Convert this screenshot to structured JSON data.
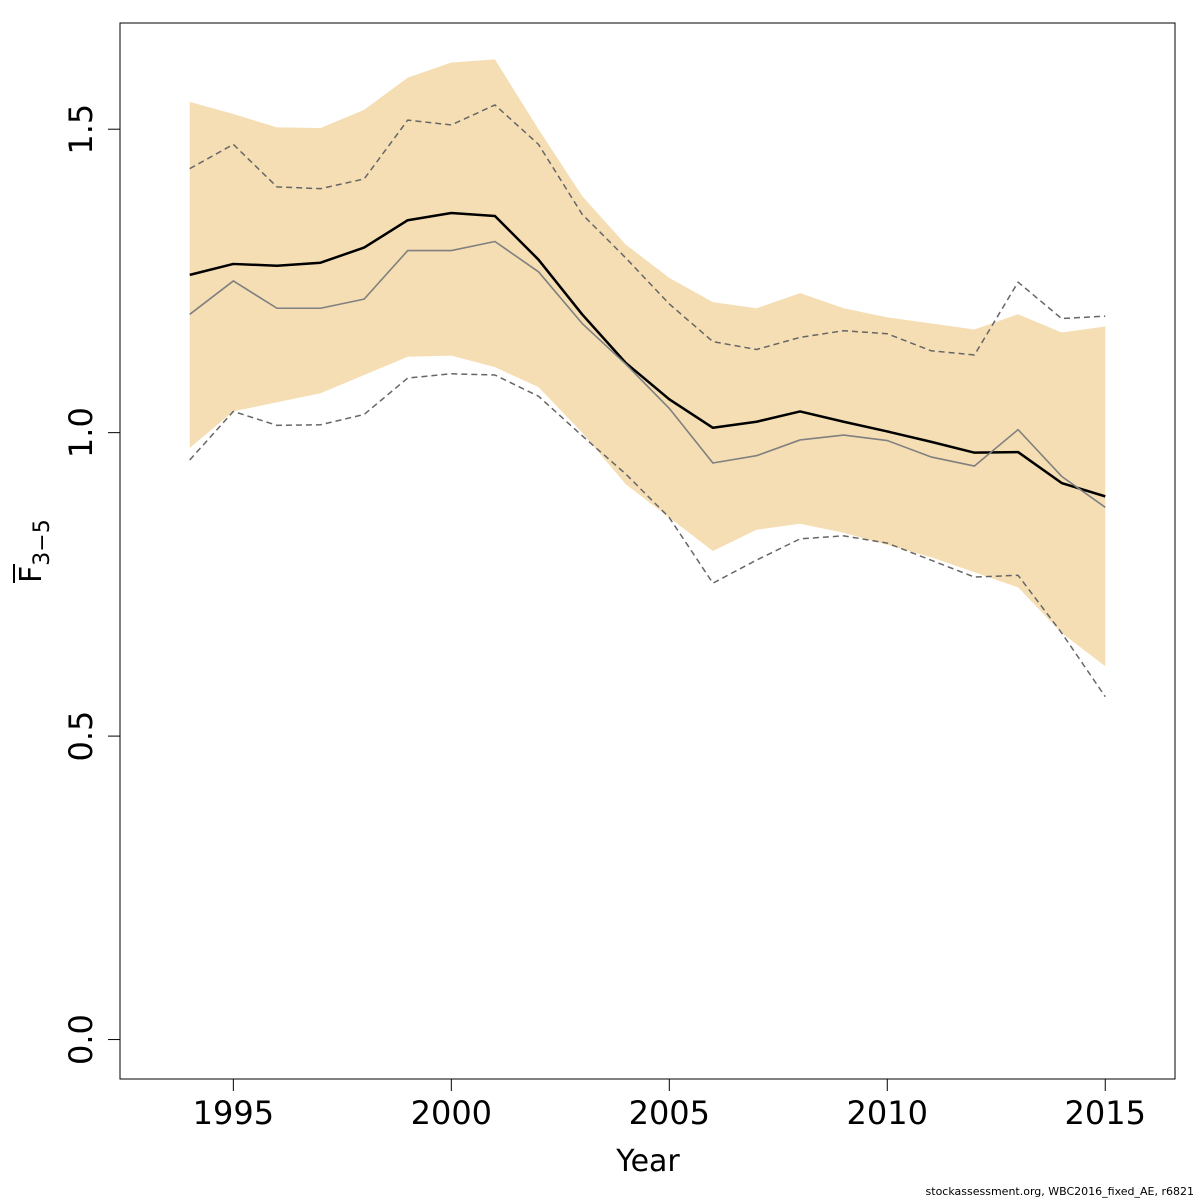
{
  "chart_data": {
    "type": "line",
    "xlabel": "Year",
    "ylabel": "F",
    "ylabel_sub": "3−5",
    "xlim": [
      1992.4,
      2016.6
    ],
    "ylim": [
      -0.065,
      1.675
    ],
    "x_ticks": [
      1995,
      2000,
      2005,
      2010,
      2015
    ],
    "x_tick_labels": [
      "1995",
      "2000",
      "2005",
      "2010",
      "2015"
    ],
    "y_ticks": [
      0.0,
      0.5,
      1.0,
      1.5
    ],
    "y_tick_labels": [
      "0.0",
      "0.5",
      "1.0",
      "1.5"
    ],
    "x": [
      1994,
      1995,
      1996,
      1997,
      1998,
      1999,
      2000,
      2001,
      2002,
      2003,
      2004,
      2005,
      2006,
      2007,
      2008,
      2009,
      2010,
      2011,
      2012,
      2013,
      2014,
      2015
    ],
    "band": {
      "upper": [
        1.545,
        1.525,
        1.503,
        1.502,
        1.532,
        1.585,
        1.61,
        1.615,
        1.5,
        1.39,
        1.31,
        1.255,
        1.215,
        1.205,
        1.23,
        1.205,
        1.19,
        1.18,
        1.17,
        1.195,
        1.165,
        1.175
      ],
      "lower": [
        0.975,
        1.035,
        1.05,
        1.065,
        1.095,
        1.125,
        1.127,
        1.108,
        1.075,
        1.0,
        0.915,
        0.86,
        0.805,
        0.84,
        0.85,
        0.835,
        0.815,
        0.795,
        0.77,
        0.745,
        0.67,
        0.615
      ],
      "color": "#f5deb3"
    },
    "series": [
      {
        "values": [
          1.26,
          1.278,
          1.275,
          1.28,
          1.305,
          1.35,
          1.362,
          1.357,
          1.285,
          1.195,
          1.115,
          1.055,
          1.008,
          1.018,
          1.035,
          1.018,
          1.002,
          0.985,
          0.967,
          0.968,
          0.917,
          0.895
        ],
        "color": "#000000",
        "width": 2.5,
        "dash": ""
      },
      {
        "values": [
          1.195,
          1.25,
          1.205,
          1.205,
          1.22,
          1.3,
          1.3,
          1.315,
          1.265,
          1.18,
          1.113,
          1.04,
          0.95,
          0.962,
          0.988,
          0.996,
          0.987,
          0.96,
          0.945,
          1.005,
          0.928,
          0.877
        ],
        "color": "#808080",
        "width": 1.6,
        "dash": ""
      },
      {
        "values": [
          1.435,
          1.475,
          1.405,
          1.402,
          1.418,
          1.515,
          1.507,
          1.54,
          1.475,
          1.36,
          1.288,
          1.212,
          1.15,
          1.137,
          1.157,
          1.168,
          1.163,
          1.135,
          1.128,
          1.248,
          1.188,
          1.192
        ],
        "color": "#666666",
        "width": 1.5,
        "dash": "6,4"
      },
      {
        "values": [
          0.955,
          1.035,
          1.012,
          1.013,
          1.03,
          1.09,
          1.097,
          1.095,
          1.06,
          0.995,
          0.932,
          0.86,
          0.752,
          0.79,
          0.825,
          0.83,
          0.818,
          0.79,
          0.762,
          0.765,
          0.67,
          0.565
        ],
        "color": "#666666",
        "width": 1.5,
        "dash": "6,4"
      }
    ]
  },
  "footer": "stockassessment.org, WBC2016_fixed_AE, r6821"
}
